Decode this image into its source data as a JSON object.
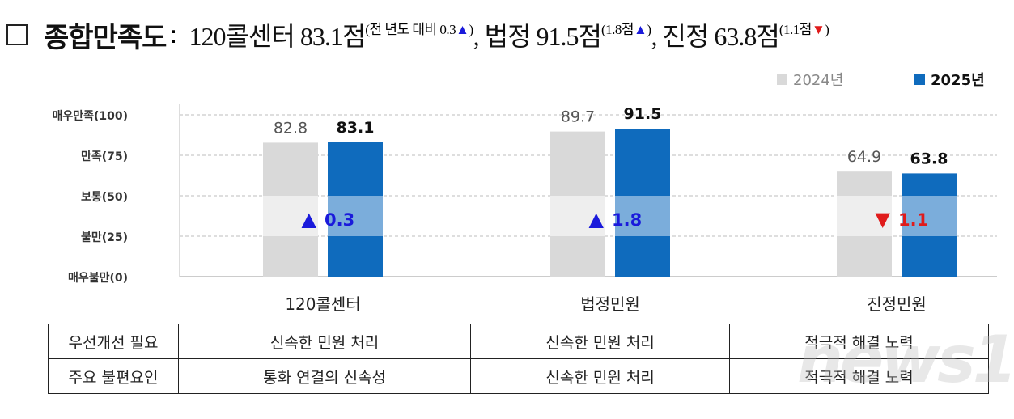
{
  "title": {
    "main": "종합만족도",
    "colon": ":",
    "parts": [
      {
        "text": "120콜센터 83.1점",
        "sup": "(전  년도  대비  0.3",
        "arrow": "▲",
        "close": ")",
        "dir": "up"
      },
      {
        "sep": ", ",
        "text": "법정 91.5점",
        "sup": "(1.8점",
        "arrow": "▲",
        "close": ")",
        "dir": "up"
      },
      {
        "sep": ", ",
        "text": "진정 63.8점",
        "sup": "(1.1점",
        "arrow": "▼",
        "close": ")",
        "dir": "down"
      }
    ]
  },
  "chart_data": {
    "type": "bar",
    "categories": [
      "120콜센터",
      "법정민원",
      "진정민원"
    ],
    "series": [
      {
        "name": "2024년",
        "values": [
          82.8,
          89.7,
          64.9
        ],
        "color": "#d9d9d9"
      },
      {
        "name": "2025년",
        "values": [
          83.1,
          91.5,
          63.8
        ],
        "color": "#0f6bbd"
      }
    ],
    "yticks": [
      {
        "v": 100,
        "label": "매우만족(100)"
      },
      {
        "v": 75,
        "label": "만족(75)"
      },
      {
        "v": 50,
        "label": "보통(50)"
      },
      {
        "v": 25,
        "label": "불만(25)"
      },
      {
        "v": 0,
        "label": "매우불만(0)"
      }
    ],
    "ylim": [
      0,
      100
    ],
    "grid": true,
    "legend_position": "top-right",
    "highlight_band": [
      25,
      50
    ],
    "changes": [
      {
        "arrow": "▲",
        "value": "0.3",
        "color": "#1a1adb"
      },
      {
        "arrow": "▲",
        "value": "1.8",
        "color": "#1a1adb"
      },
      {
        "arrow": "▼",
        "value": "1.1",
        "color": "#e01b1b"
      }
    ]
  },
  "table": {
    "rows": [
      {
        "header": "우선개선 필요",
        "cells": [
          "신속한 민원 처리",
          "신속한 민원 처리",
          "적극적 해결 노력"
        ]
      },
      {
        "header": "주요 불편요인",
        "cells": [
          "통화 연결의 신속성",
          "신속한 민원 처리",
          "적극적 해결 노력"
        ]
      }
    ]
  },
  "watermark": "news1"
}
